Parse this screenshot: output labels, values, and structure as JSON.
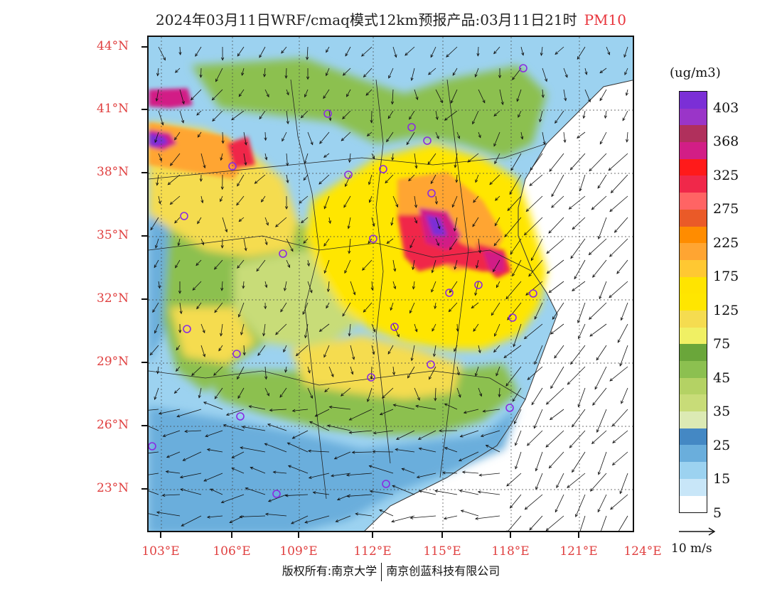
{
  "title": {
    "main": "2024年03月11日WRF/cmaq模式12km预报产品:03月11日21时",
    "pollutant": "PM10",
    "pollutant_color": "#e8343c"
  },
  "axes": {
    "lat_labels": [
      "44°N",
      "41°N",
      "38°N",
      "35°N",
      "32°N",
      "29°N",
      "26°N",
      "23°N"
    ],
    "lon_labels": [
      "103°E",
      "106°E",
      "109°E",
      "112°E",
      "115°E",
      "118°E",
      "121°E",
      "124°E"
    ],
    "label_color": "#e04040"
  },
  "colorbar": {
    "unit": "(ug/m3)",
    "labels": [
      "403",
      "368",
      "325",
      "275",
      "225",
      "175",
      "125",
      "75",
      "45",
      "35",
      "25",
      "15",
      "5"
    ],
    "colors": [
      "#7b2fd6",
      "#9a35c8",
      "#b0305c",
      "#d21e86",
      "#ff1a1a",
      "#f0284a",
      "#ff6464",
      "#ea5a28",
      "#ff8c00",
      "#ffa532",
      "#ffc832",
      "#ffe400",
      "#ffe600",
      "#f5dc50",
      "#f0f064",
      "#6aa63a",
      "#8cc050",
      "#b4d264",
      "#c8dc78",
      "#dceab4",
      "#4488c4",
      "#6aaedc",
      "#9cd2f0",
      "#c8e6f8",
      "#ffffff"
    ]
  },
  "reference_vector": {
    "label": "10 m/s"
  },
  "footer": {
    "left": "版权所有:南京大学",
    "right": "南京创蓝科技有限公司"
  },
  "map": {
    "palette": {
      "ocean": "#ffffff",
      "low": "#6aaedc",
      "lowmid": "#9cd2f0",
      "green": "#8cc050",
      "lightgreen": "#c8dc78",
      "yellow": "#ffe600",
      "paleyellow": "#f5dc50",
      "orange": "#ffa532",
      "red": "#f0284a",
      "magenta": "#d21e86",
      "purple": "#7b2fd6"
    }
  }
}
